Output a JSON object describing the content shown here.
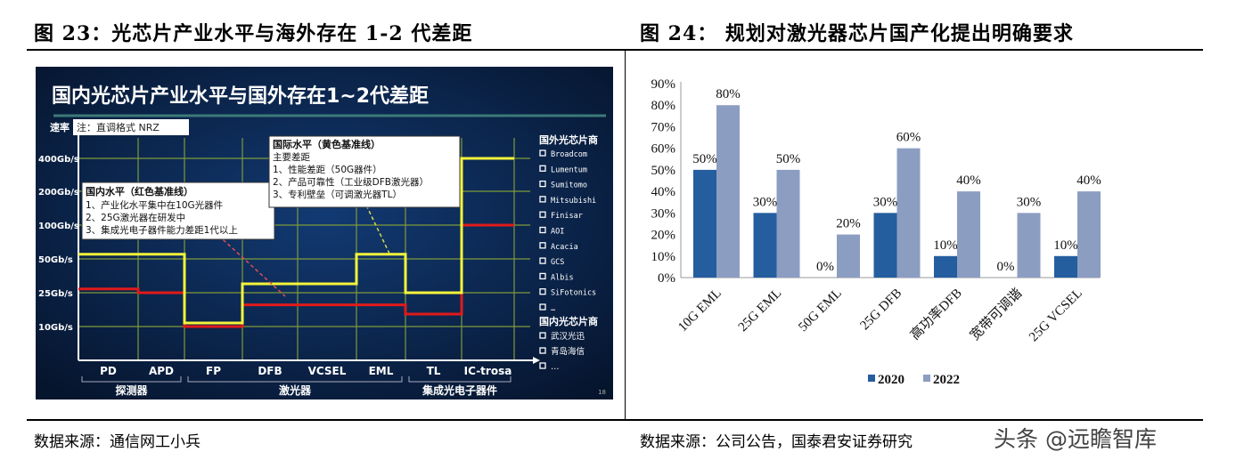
{
  "fig23": {
    "heading": "图 23：光芯片产业水平与海外存在 1-2 代差距",
    "source": "数据来源：通信网工小兵",
    "slide_title": "国内光芯片产业水平与国外存在1~2代差距",
    "y_axis_label": "速率",
    "note": "注：直调格式 NRZ",
    "y_ticks": [
      "400Gb/s",
      "200Gb/s",
      "100Gb/s",
      "50Gb/s",
      "25Gb/s",
      "10Gb/s"
    ],
    "y_tick_values": [
      400,
      200,
      100,
      50,
      25,
      10
    ],
    "categories": [
      "PD",
      "APD",
      "FP",
      "DFB",
      "VCSEL",
      "EML",
      "TL",
      "IC-trosa"
    ],
    "groups": [
      "探测器",
      "激光器",
      "集成光电子器件"
    ],
    "international": {
      "title": "国际水平（黄色基准线）",
      "lines": [
        "主要差距",
        "1、性能差距（50G器件）",
        "2、产品可靠性（工业级DFB激光器）",
        "3、专利壁垒（可调激光器TL）"
      ],
      "color": "#f5f53a",
      "values": [
        55,
        55,
        11,
        30,
        30,
        55,
        25,
        400
      ]
    },
    "domestic": {
      "title": "国内水平（红色基准线）",
      "lines": [
        "1、产业化水平集中在10G光器件",
        "2、25G激光器在研发中",
        "3、集成光电子器件能力差距1代以上"
      ],
      "color": "#e01a1a",
      "values": [
        27,
        25,
        10,
        18,
        18,
        18,
        14,
        100
      ]
    },
    "foreign_vendors_title": "国外光芯片商",
    "foreign_vendors": [
      "Broadcom",
      "Lumentum",
      "Sumitomo",
      "Mitsubishi",
      "Finisar",
      "AOI",
      "Acacia",
      "GCS",
      "Albis",
      "SiFotonics",
      "…"
    ],
    "domestic_vendors_title": "国内光芯片商",
    "domestic_vendors": [
      "武汉光迅",
      "青岛海信",
      "…"
    ],
    "page_no": "18"
  },
  "fig24": {
    "heading": "图 24：  规划对激光器芯片国产化提出明确要求",
    "source": "数据来源：公司公告，国泰君安证券研究",
    "chart_data": {
      "type": "bar",
      "categories": [
        "10G EML",
        "25G EML",
        "50G EML",
        "25G DFB",
        "高功率DFB",
        "宽带可调谐",
        "25G VCSEL"
      ],
      "series": [
        {
          "name": "2020",
          "values": [
            50,
            30,
            0,
            30,
            10,
            0,
            10
          ],
          "color": "#245e9e"
        },
        {
          "name": "2022",
          "values": [
            80,
            50,
            20,
            60,
            40,
            30,
            40
          ],
          "color": "#8c9dc2"
        }
      ],
      "y_ticks": [
        "0%",
        "10%",
        "20%",
        "30%",
        "40%",
        "50%",
        "60%",
        "70%",
        "80%",
        "90%"
      ],
      "ylim": [
        0,
        90
      ],
      "grid": false,
      "legend": "bottom"
    }
  },
  "watermark": "头条 @远瞻智库"
}
